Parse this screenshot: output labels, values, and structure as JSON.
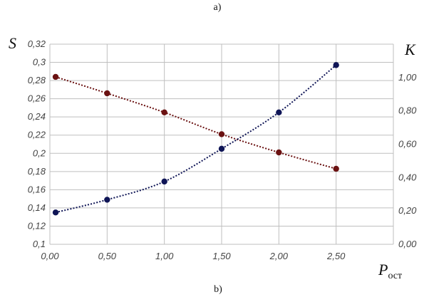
{
  "panel_top_label": "a)",
  "panel_bottom_label": "b)",
  "chart_data": {
    "type": "line",
    "title": "",
    "xlabel": "P",
    "xlabel_subscript": "ост",
    "ylabel_left": "S",
    "ylabel_right": "K",
    "grid": true,
    "x_ticks": [
      "0,00",
      "0,50",
      "1,00",
      "1,50",
      "2,00",
      "2,50",
      ""
    ],
    "xlim": [
      0,
      3.0
    ],
    "y_left_ticks": [
      "0,1",
      "0,12",
      "0,14",
      "0,16",
      "0,18",
      "0,2",
      "0,22",
      "0,24",
      "0,26",
      "0,28",
      "0,3",
      "0,32"
    ],
    "ylim_left": [
      0.1,
      0.32
    ],
    "y_right_ticks": [
      "0,00",
      "0,20",
      "0,40",
      "0,60",
      "0,80",
      "1,00"
    ],
    "ylim_right": [
      0.0,
      1.2
    ],
    "series": [
      {
        "axis": "left",
        "color": "#6b1212",
        "x": [
          0.05,
          0.5,
          1.0,
          1.5,
          2.0,
          2.5
        ],
        "values": [
          0.284,
          0.266,
          0.245,
          0.221,
          0.201,
          0.183
        ]
      },
      {
        "axis": "left",
        "color": "#0f1556",
        "x": [
          0.05,
          0.5,
          1.0,
          1.5,
          2.0,
          2.5
        ],
        "values": [
          0.135,
          0.149,
          0.169,
          0.205,
          0.245,
          0.297
        ]
      }
    ]
  }
}
